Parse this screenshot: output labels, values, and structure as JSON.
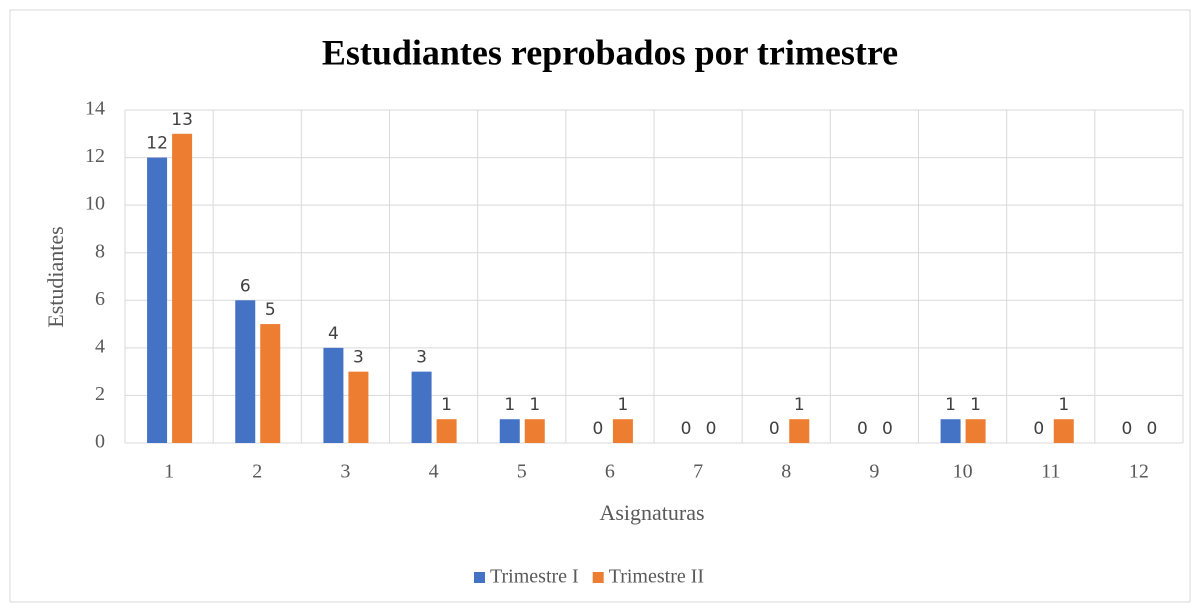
{
  "chart_data": {
    "type": "bar",
    "title": "Estudiantes reprobados por trimestre",
    "xlabel": "Asignaturas",
    "ylabel": "Estudiantes",
    "categories": [
      "1",
      "2",
      "3",
      "4",
      "5",
      "6",
      "7",
      "8",
      "9",
      "10",
      "11",
      "12"
    ],
    "series": [
      {
        "name": "Trimestre I",
        "color": "#4472c4",
        "values": [
          12,
          6,
          4,
          3,
          1,
          0,
          0,
          0,
          0,
          1,
          0,
          0
        ]
      },
      {
        "name": "Trimestre II",
        "color": "#ed7d31",
        "values": [
          13,
          5,
          3,
          1,
          1,
          1,
          0,
          1,
          0,
          1,
          1,
          0
        ]
      }
    ],
    "ylim": [
      0,
      14
    ],
    "yticks": [
      0,
      2,
      4,
      6,
      8,
      10,
      12,
      14
    ],
    "grid": true,
    "legend": "bottom"
  }
}
